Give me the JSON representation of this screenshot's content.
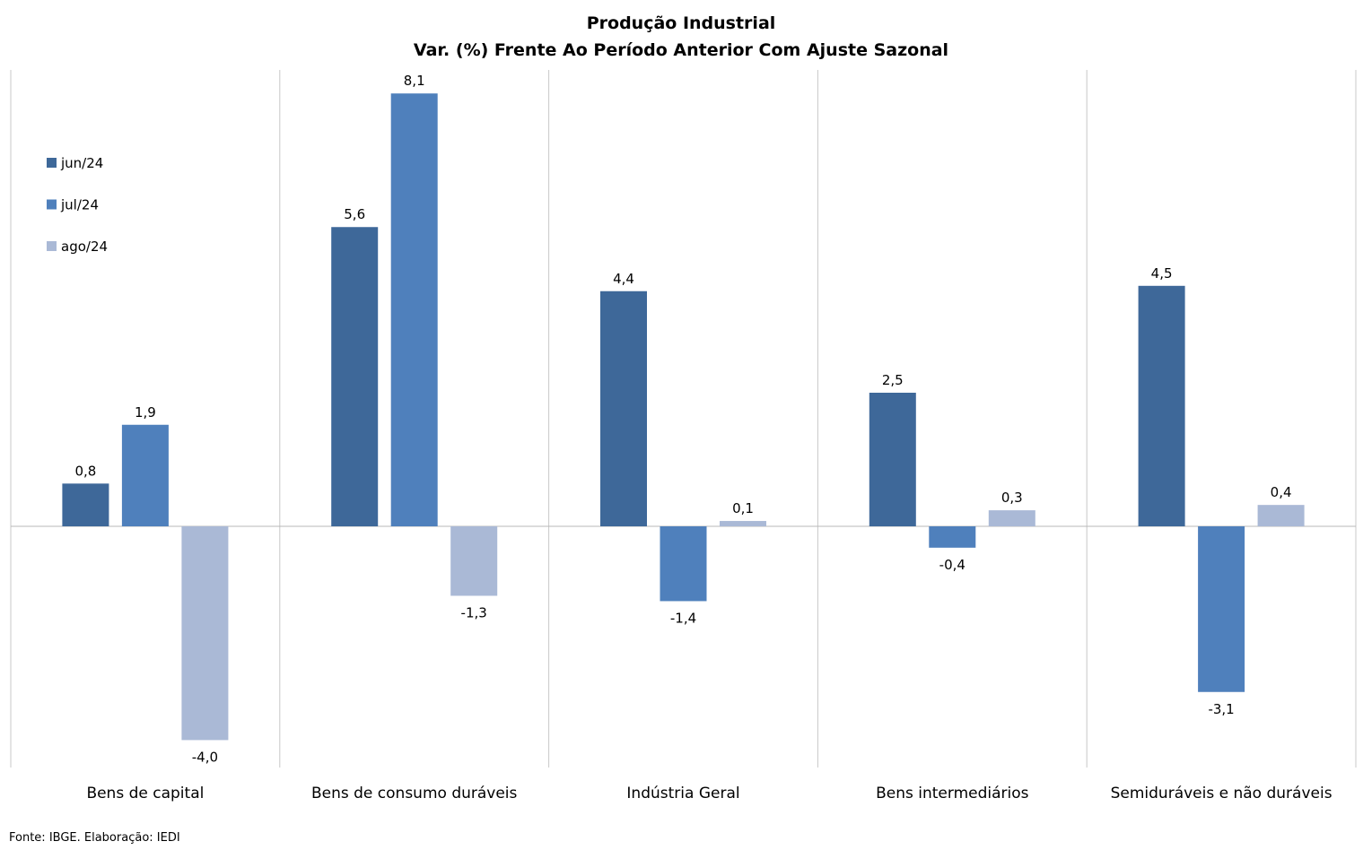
{
  "chart_data": {
    "type": "bar",
    "title": "Produção Industrial",
    "subtitle": "Var. (%) Frente Ao Período Anterior Com Ajuste Sazonal",
    "categories": [
      "Bens de capital",
      "Bens de consumo duráveis",
      "Indústria Geral",
      "Bens intermediários",
      "Semiduráveis e não duráveis"
    ],
    "series": [
      {
        "name": "jun/24",
        "color": "#3E6899",
        "values": [
          0.8,
          5.6,
          4.4,
          2.5,
          4.5
        ],
        "labels": [
          "0,8",
          "5,6",
          "4,4",
          "2,5",
          "4,5"
        ]
      },
      {
        "name": "jul/24",
        "color": "#4F80BC",
        "values": [
          1.9,
          8.1,
          -1.4,
          -0.4,
          -3.1
        ],
        "labels": [
          "1,9",
          "8,1",
          "-1,4",
          "-0,4",
          "-3,1"
        ]
      },
      {
        "name": "ago/24",
        "color": "#AAB9D6",
        "values": [
          -4.0,
          -1.3,
          0.1,
          0.3,
          0.4
        ],
        "labels": [
          "-4,0",
          "-1,3",
          "0,1",
          "0,3",
          "0,4"
        ]
      }
    ],
    "ylim": [
      -4.5,
      8.5
    ],
    "legend_position": "top-left",
    "category_separators": true
  },
  "source_note": "Fonte: IBGE. Elaboração: IEDI"
}
